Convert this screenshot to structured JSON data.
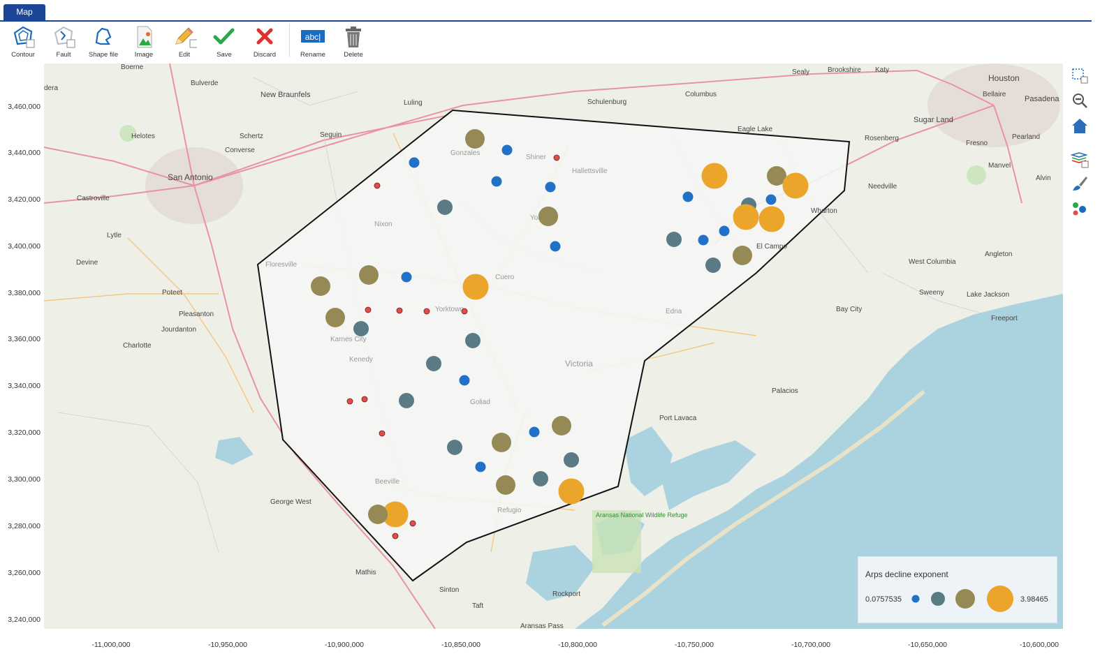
{
  "tabs": [
    {
      "label": "Map"
    }
  ],
  "toolbar": {
    "items": [
      {
        "label": "Contour",
        "icon": "contour-icon"
      },
      {
        "label": "Fault",
        "icon": "fault-icon"
      },
      {
        "label": "Shape file",
        "icon": "shape-file-icon"
      },
      {
        "label": "Image",
        "icon": "image-icon"
      },
      {
        "label": "Edit",
        "icon": "edit-pencil-icon"
      },
      {
        "label": "Save",
        "icon": "save-check-icon"
      },
      {
        "label": "Discard",
        "icon": "discard-x-icon"
      },
      {
        "label": "Rename",
        "icon": "rename-icon"
      },
      {
        "label": "Delete",
        "icon": "trash-icon"
      }
    ],
    "rename_glyph": "abc|"
  },
  "axes": {
    "y_ticks": [
      "3,460,000",
      "3,440,000",
      "3,420,000",
      "3,400,000",
      "3,380,000",
      "3,360,000",
      "3,340,000",
      "3,320,000",
      "3,300,000",
      "3,280,000",
      "3,260,000",
      "3,240,000"
    ],
    "x_ticks": [
      "-11,000,000",
      "-10,950,000",
      "-10,900,000",
      "-10,850,000",
      "-10,800,000",
      "-10,750,000",
      "-10,700,000",
      "-10,650,000",
      "-10,600,000"
    ]
  },
  "side_tools": [
    {
      "icon": "select-region-icon"
    },
    {
      "icon": "zoom-out-icon"
    },
    {
      "icon": "home-icon"
    },
    {
      "icon": "layers-icon"
    },
    {
      "icon": "brush-icon"
    },
    {
      "icon": "color-dots-icon"
    }
  ],
  "map_labels": [
    {
      "text": "Boerne"
    },
    {
      "text": "Bulverde"
    },
    {
      "text": "New Braunfels"
    },
    {
      "text": "Luling"
    },
    {
      "text": "Schulenburg"
    },
    {
      "text": "Columbus"
    },
    {
      "text": "Sealy"
    },
    {
      "text": "Brookshire"
    },
    {
      "text": "Katy"
    },
    {
      "text": "Houston"
    },
    {
      "text": "Bellaire"
    },
    {
      "text": "Pasadena"
    },
    {
      "text": "Sugar Land"
    },
    {
      "text": "Eagle Lake"
    },
    {
      "text": "Rosenberg"
    },
    {
      "text": "Fresno"
    },
    {
      "text": "Pearland"
    },
    {
      "text": "Manvel"
    },
    {
      "text": "Alvin"
    },
    {
      "text": "Needville"
    },
    {
      "text": "Wharton"
    },
    {
      "text": "El Campo"
    },
    {
      "text": "West Columbia"
    },
    {
      "text": "Angleton"
    },
    {
      "text": "Sweeny"
    },
    {
      "text": "Lake Jackson"
    },
    {
      "text": "Bay City"
    },
    {
      "text": "Freeport"
    },
    {
      "text": "Palacios"
    },
    {
      "text": "Port Lavaca"
    },
    {
      "text": "Victoria"
    },
    {
      "text": "Edna"
    },
    {
      "text": "Cuero"
    },
    {
      "text": "Yorktown"
    },
    {
      "text": "Goliad"
    },
    {
      "text": "Beeville"
    },
    {
      "text": "Refugio"
    },
    {
      "text": "Rockport"
    },
    {
      "text": "Aransas National Wildlife Refuge"
    },
    {
      "text": "Aransas Pass"
    },
    {
      "text": "Taft"
    },
    {
      "text": "Sinton"
    },
    {
      "text": "Mathis"
    },
    {
      "text": "George West"
    },
    {
      "text": "Charlotte"
    },
    {
      "text": "Jourdanton"
    },
    {
      "text": "Pleasanton"
    },
    {
      "text": "Poteet"
    },
    {
      "text": "Devine"
    },
    {
      "text": "Lytle"
    },
    {
      "text": "Castroville"
    },
    {
      "text": "San Antonio"
    },
    {
      "text": "Helotes"
    },
    {
      "text": "Converse"
    },
    {
      "text": "Schertz"
    },
    {
      "text": "Seguin"
    },
    {
      "text": "Gonzales"
    },
    {
      "text": "Shiner"
    },
    {
      "text": "Hallettsville"
    },
    {
      "text": "Nixon"
    },
    {
      "text": "Floresville"
    },
    {
      "text": "Karnes City"
    },
    {
      "text": "Kenedy"
    },
    {
      "text": "Yoakum"
    },
    {
      "text": "dera"
    }
  ],
  "wells": [
    {
      "class": 3,
      "value": 3.1
    },
    {
      "class": 1,
      "value": 0.6
    },
    {
      "class": 0,
      "value": 0.08
    },
    {
      "class": 1,
      "value": 0.6
    },
    {
      "class": 1,
      "value": 0.6
    },
    {
      "class": 0,
      "value": 0.08
    },
    {
      "class": 3,
      "value": 3.1
    },
    {
      "class": 2,
      "value": 1.6
    },
    {
      "class": 1,
      "value": 0.6
    },
    {
      "class": 0,
      "value": 0.08
    },
    {
      "class": 2,
      "value": 1.6
    },
    {
      "class": 2,
      "value": 1.6
    },
    {
      "class": 1,
      "value": 0.6
    },
    {
      "class": 4,
      "value": 3.98
    },
    {
      "class": 4,
      "value": 3.98
    },
    {
      "class": 0,
      "value": 0.08
    },
    {
      "class": 0,
      "value": 0.08
    },
    {
      "class": 0,
      "value": 0.08
    },
    {
      "class": 0,
      "value": 0.08
    },
    {
      "class": 3,
      "value": 3.1
    },
    {
      "class": 2,
      "value": 1.6
    },
    {
      "class": 2,
      "value": 1.6
    },
    {
      "class": 2,
      "value": 1.6
    },
    {
      "class": 0,
      "value": 0.08
    },
    {
      "class": 1,
      "value": 0.6
    },
    {
      "class": 0,
      "value": 0.08
    },
    {
      "class": 3,
      "value": 3.1
    },
    {
      "class": 0,
      "value": 0.08
    },
    {
      "class": 0,
      "value": 0.08
    },
    {
      "class": 1,
      "value": 0.6
    },
    {
      "class": 0,
      "value": 0.08
    },
    {
      "class": 3,
      "value": 3.1
    },
    {
      "class": 2,
      "value": 1.6
    },
    {
      "class": 1,
      "value": 0.6
    },
    {
      "class": 2,
      "value": 1.6
    },
    {
      "class": 1,
      "value": 0.6
    },
    {
      "class": 1,
      "value": 0.6
    },
    {
      "class": 4,
      "value": 3.98
    },
    {
      "class": 2,
      "value": 1.6
    },
    {
      "class": 4,
      "value": 3.98
    },
    {
      "class": 0,
      "value": 0.08
    },
    {
      "class": 0,
      "value": 0.08
    },
    {
      "class": 4,
      "value": 3.98
    },
    {
      "class": 3,
      "value": 3.1
    },
    {
      "class": 4,
      "value": 3.98
    },
    {
      "class": 4,
      "value": 3.98
    },
    {
      "class": 3,
      "value": 3.1
    },
    {
      "class": 1,
      "value": 0.6
    },
    {
      "class": 1,
      "value": 0.6
    },
    {
      "class": 1,
      "value": 0.6
    },
    {
      "class": 1,
      "value": 0.6
    },
    {
      "class": 1,
      "value": 0.6
    },
    {
      "class": 2,
      "value": 1.6
    },
    {
      "class": 1,
      "value": 0.6
    },
    {
      "class": 3,
      "value": 3.1
    }
  ],
  "legend": {
    "title": "Arps decline exponent",
    "min_label": "0.0757535",
    "max_label": "3.98465"
  },
  "colors": {
    "class0": "#e04d4d",
    "class1": "#2171c7",
    "class2": "#5a7a86",
    "class3": "#958a55",
    "class4": "#eba52b",
    "tab": "#1c4596",
    "water": "#aad3df",
    "land": "#eef0e8",
    "polygon_fill": "#f5f5f4",
    "save": "#2ba84a",
    "discard": "#e02f2f"
  }
}
